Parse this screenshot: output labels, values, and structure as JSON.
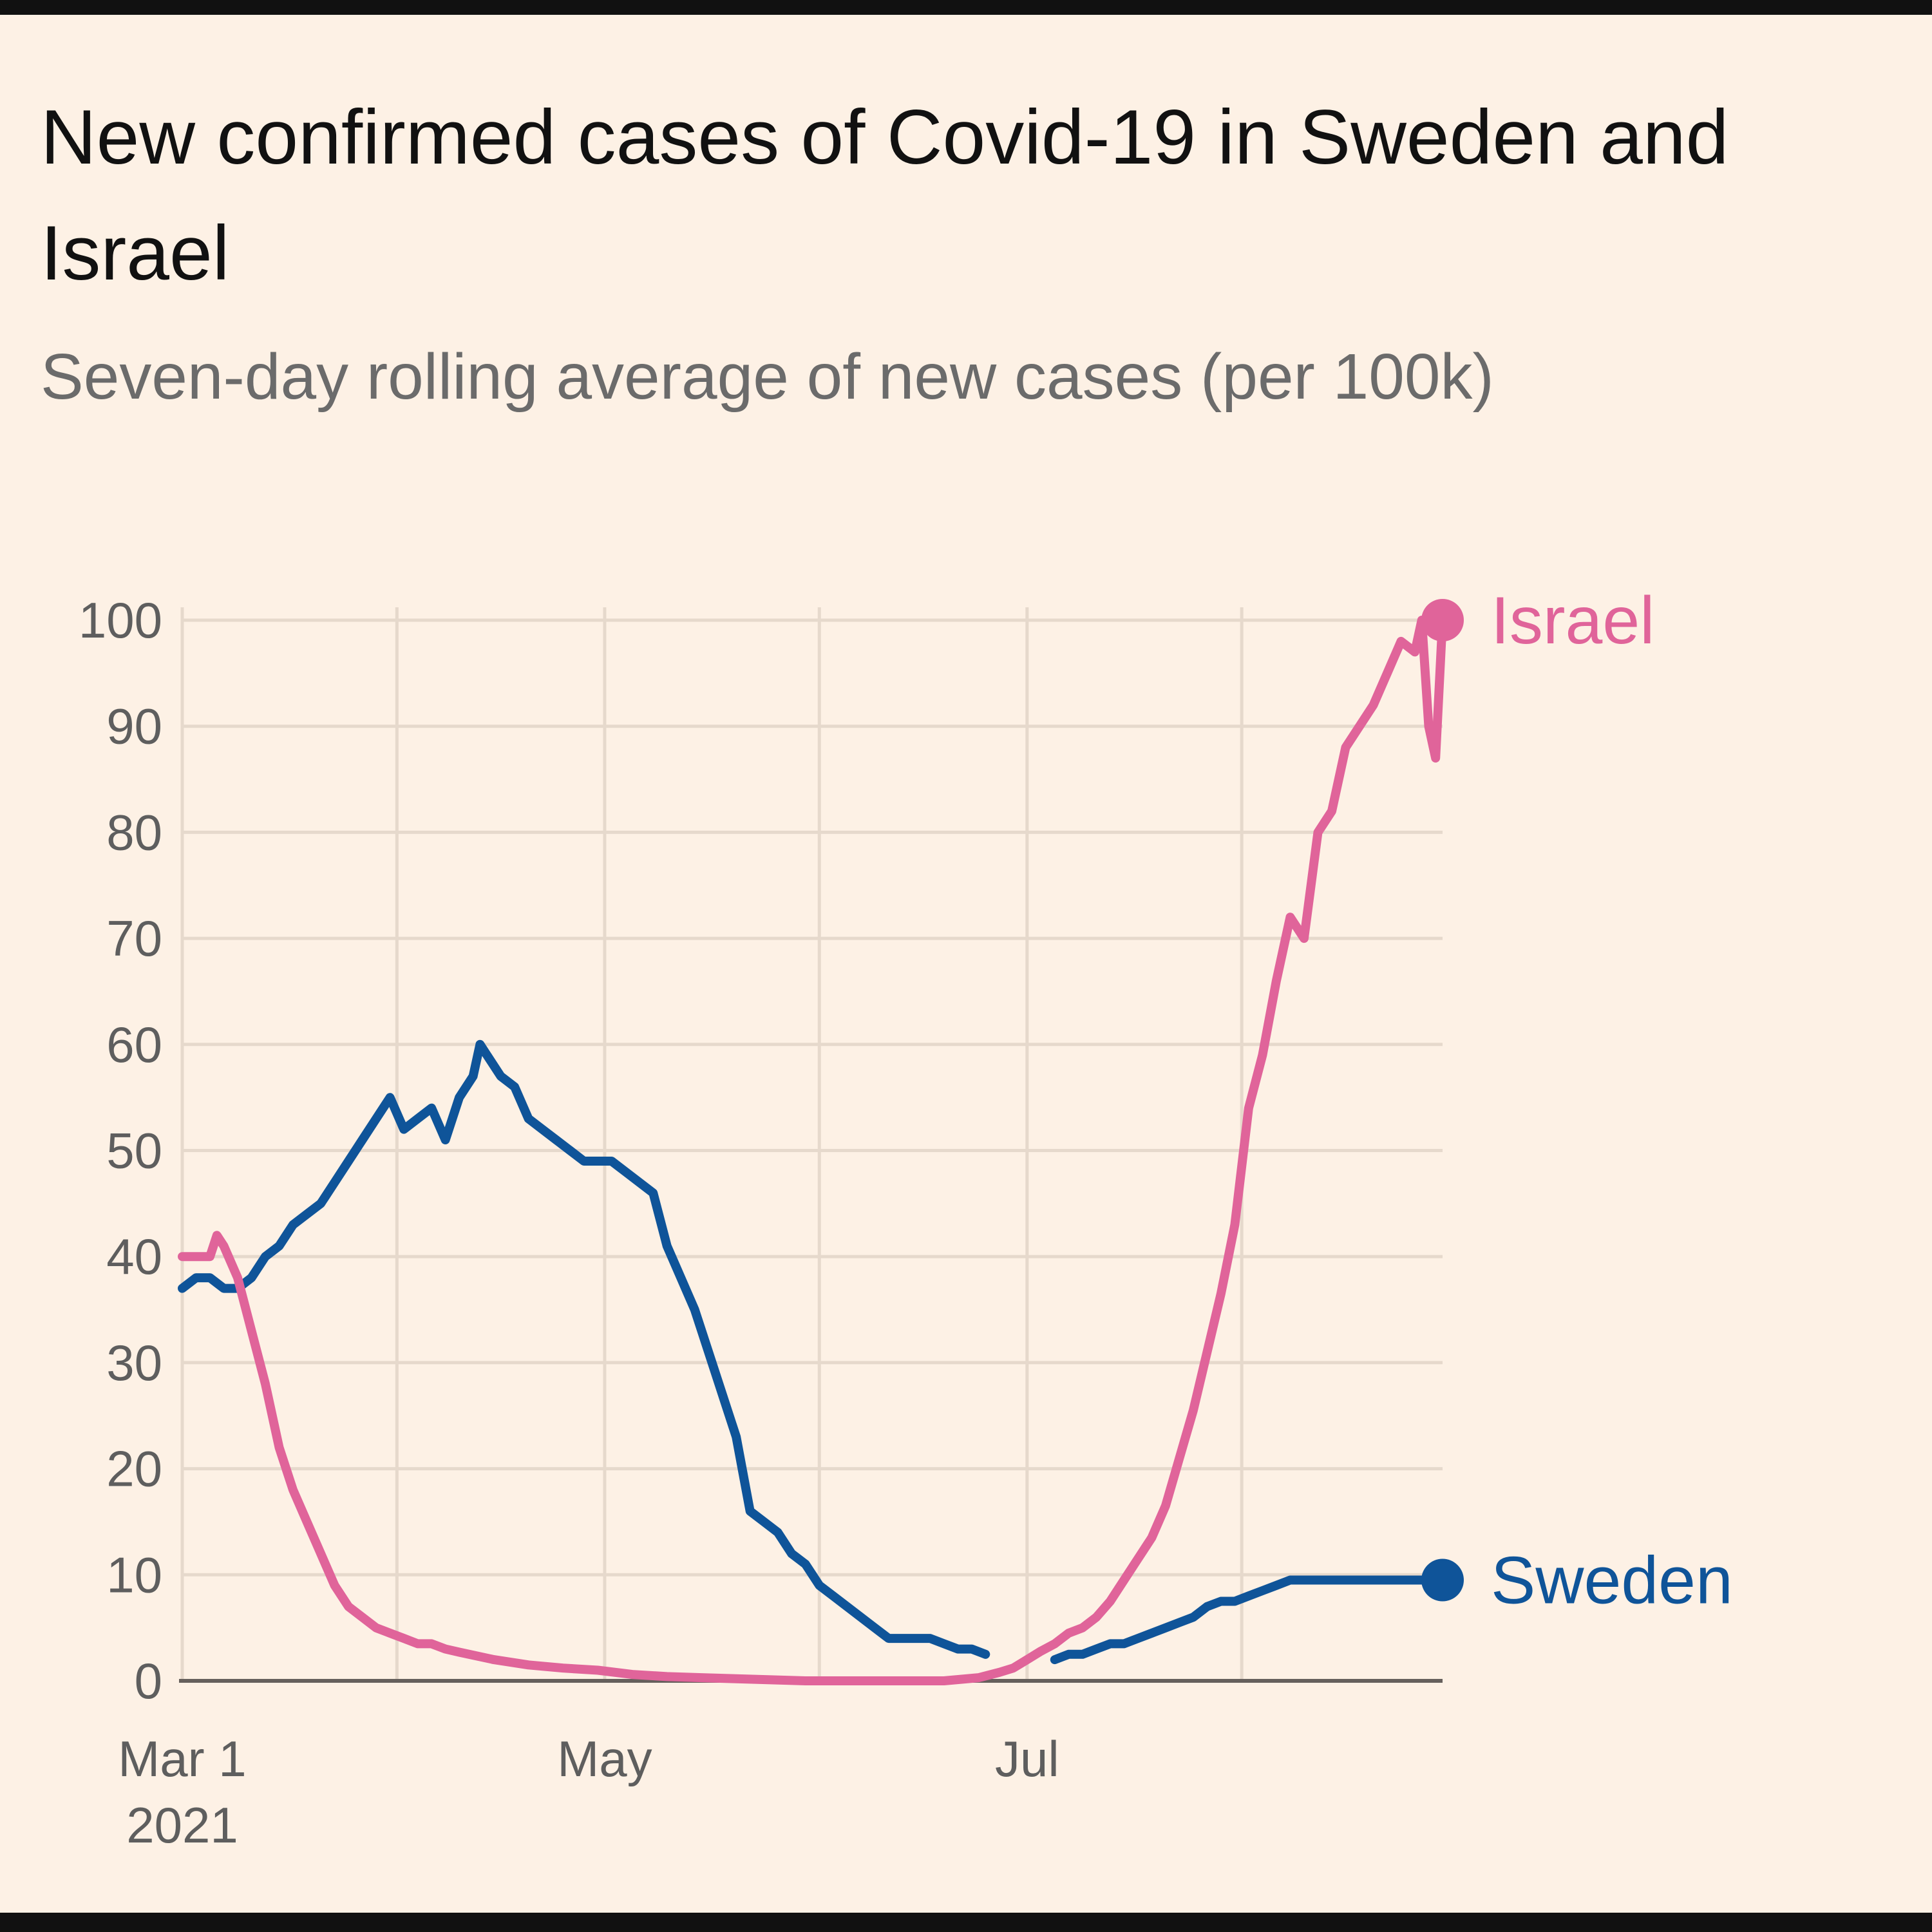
{
  "chart_data": {
    "type": "line",
    "title": "New confirmed cases of Covid-19 in Sweden and Israel",
    "subtitle": "Seven-day rolling average of new cases (per 100k)",
    "xlabel": "",
    "ylabel": "",
    "ylim": [
      0,
      100
    ],
    "yticks": [
      0,
      10,
      20,
      30,
      40,
      50,
      60,
      70,
      80,
      90,
      100
    ],
    "xlim": [
      0,
      182
    ],
    "xticks": [
      {
        "day": 0,
        "label": "Mar 1",
        "sublabel": "2021"
      },
      {
        "day": 61,
        "label": "May",
        "sublabel": ""
      },
      {
        "day": 122,
        "label": "Jul",
        "sublabel": ""
      }
    ],
    "x_gridlines": [
      0,
      31,
      61,
      92,
      122,
      153
    ],
    "grid": true,
    "series": [
      {
        "name": "Sweden",
        "color": "#0f5499",
        "label": "Sweden",
        "x": [
          0,
          2,
          4,
          6,
          8,
          10,
          12,
          14,
          16,
          18,
          20,
          22,
          24,
          26,
          28,
          30,
          32,
          34,
          36,
          38,
          40,
          42,
          43,
          44,
          46,
          48,
          50,
          52,
          54,
          56,
          58,
          60,
          62,
          64,
          66,
          68,
          70,
          72,
          74,
          76,
          78,
          80,
          82,
          84,
          86,
          88,
          90,
          92,
          94,
          96,
          98,
          100,
          102,
          104,
          106,
          108,
          110,
          112,
          114,
          116,
          118,
          120,
          122,
          124,
          126,
          128,
          130,
          132,
          134,
          136,
          138,
          140,
          142,
          144,
          146,
          148,
          150,
          152,
          154,
          156,
          158,
          160,
          162,
          164,
          166,
          168,
          170,
          172,
          174,
          176,
          178,
          180,
          182
        ],
        "values": [
          37,
          38,
          38,
          37,
          37,
          38,
          40,
          41,
          43,
          44,
          45,
          47,
          49,
          51,
          53,
          55,
          52,
          53,
          54,
          51,
          55,
          57,
          60,
          59,
          57,
          56,
          53,
          52,
          51,
          50,
          49,
          49,
          49,
          48,
          47,
          46,
          41,
          38,
          35,
          31,
          27,
          23,
          16,
          15,
          14,
          12,
          11,
          9,
          8,
          7,
          6,
          5,
          4,
          4,
          4,
          4,
          3.5,
          3,
          3,
          2.5,
          2.5,
          2,
          2,
          2,
          2,
          2.5,
          2.5,
          3,
          3.5,
          3.5,
          4,
          4.5,
          5,
          5.5,
          6,
          7,
          7.5,
          7.5,
          8,
          8.5,
          9,
          9.5,
          9.5,
          9.5,
          9.5,
          9.5,
          9.5,
          9.5,
          9.5,
          9.5,
          9.5,
          9.5,
          9.5
        ],
        "gap": [
          116,
          125
        ]
      },
      {
        "name": "Israel",
        "color": "#e0649a",
        "label": "Israel",
        "x": [
          0,
          2,
          4,
          5,
          6,
          8,
          10,
          12,
          14,
          16,
          18,
          20,
          22,
          24,
          26,
          28,
          30,
          32,
          34,
          36,
          38,
          40,
          45,
          50,
          55,
          60,
          65,
          70,
          75,
          80,
          85,
          90,
          95,
          100,
          105,
          110,
          115,
          118,
          120,
          122,
          124,
          126,
          128,
          130,
          132,
          134,
          136,
          138,
          140,
          142,
          144,
          146,
          148,
          150,
          152,
          154,
          156,
          158,
          160,
          162,
          164,
          166,
          168,
          170,
          172,
          174,
          176,
          178,
          179,
          180,
          181,
          182
        ],
        "values": [
          40,
          40,
          40,
          42,
          41,
          38,
          33,
          28,
          22,
          18,
          15,
          12,
          9,
          7,
          6,
          5,
          4.5,
          4,
          3.5,
          3.5,
          3,
          2.7,
          2,
          1.5,
          1.2,
          1,
          0.6,
          0.4,
          0.3,
          0.2,
          0.1,
          0,
          0,
          0,
          0,
          0,
          0.3,
          0.8,
          1.2,
          2,
          2.8,
          3.5,
          4.5,
          5,
          6,
          7.5,
          9.5,
          11.5,
          13.5,
          16.5,
          21,
          25.5,
          31,
          36.5,
          43,
          54,
          59,
          66,
          72,
          70,
          80,
          82,
          88,
          90,
          92,
          95,
          98,
          97,
          100,
          90,
          87,
          100
        ]
      }
    ]
  }
}
